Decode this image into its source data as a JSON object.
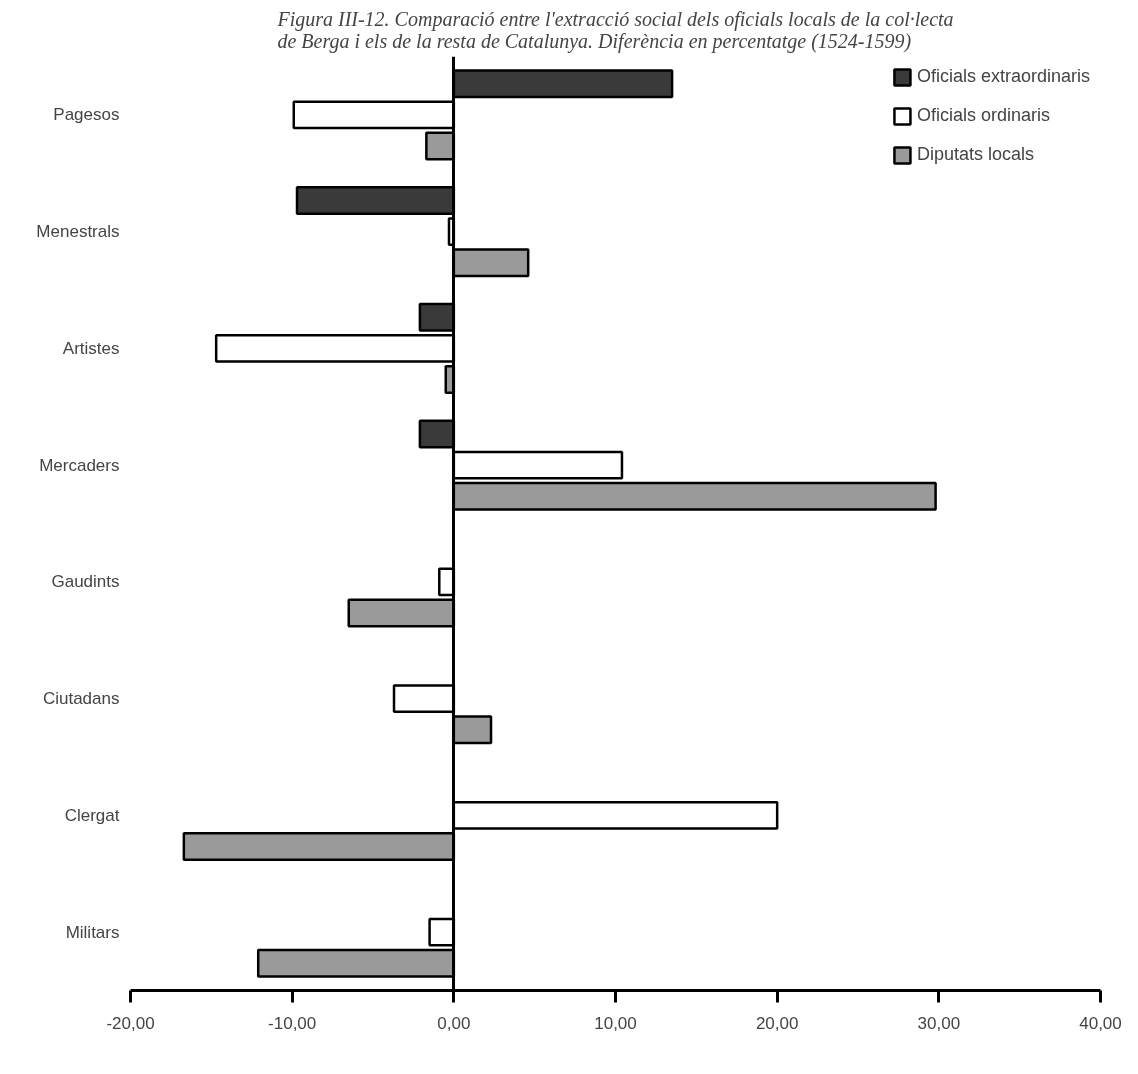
{
  "chart_data": {
    "type": "bar",
    "orientation": "horizontal",
    "title": "Figura III-12. Comparació entre l'extracció social dels oficials locals de la col·lecta\nde Berga i els de la resta de Catalunya. Diferència en percentatge (1524-1599)",
    "categories": [
      "Pagesos",
      "Menestrals",
      "Artistes",
      "Mercaders",
      "Gaudints",
      "Ciutadans",
      "Clergat",
      "Militars"
    ],
    "series": [
      {
        "name": "Oficials extraordinaris",
        "color": "#3a3a3a",
        "values": [
          13.5,
          -9.7,
          -2.1,
          -2.1,
          null,
          null,
          null,
          null
        ]
      },
      {
        "name": "Oficials ordinaris",
        "color": "#ffffff",
        "values": [
          -9.9,
          -0.3,
          -14.7,
          10.4,
          -0.9,
          -3.7,
          20.0,
          -1.5
        ]
      },
      {
        "name": "Diputats locals",
        "color": "#9a9a9a",
        "values": [
          -1.7,
          4.6,
          -0.5,
          29.8,
          -6.5,
          2.3,
          -16.7,
          -12.1
        ]
      }
    ],
    "xlim": [
      -20,
      40
    ],
    "xticks": [
      {
        "value": -20,
        "label": "-20,00"
      },
      {
        "value": -10,
        "label": "-10,00"
      },
      {
        "value": 0,
        "label": "0,00"
      },
      {
        "value": 10,
        "label": "10,00"
      },
      {
        "value": 20,
        "label": "20,00"
      },
      {
        "value": 30,
        "label": "30,00"
      },
      {
        "value": 40,
        "label": "40,00"
      }
    ],
    "legend": "top right"
  }
}
